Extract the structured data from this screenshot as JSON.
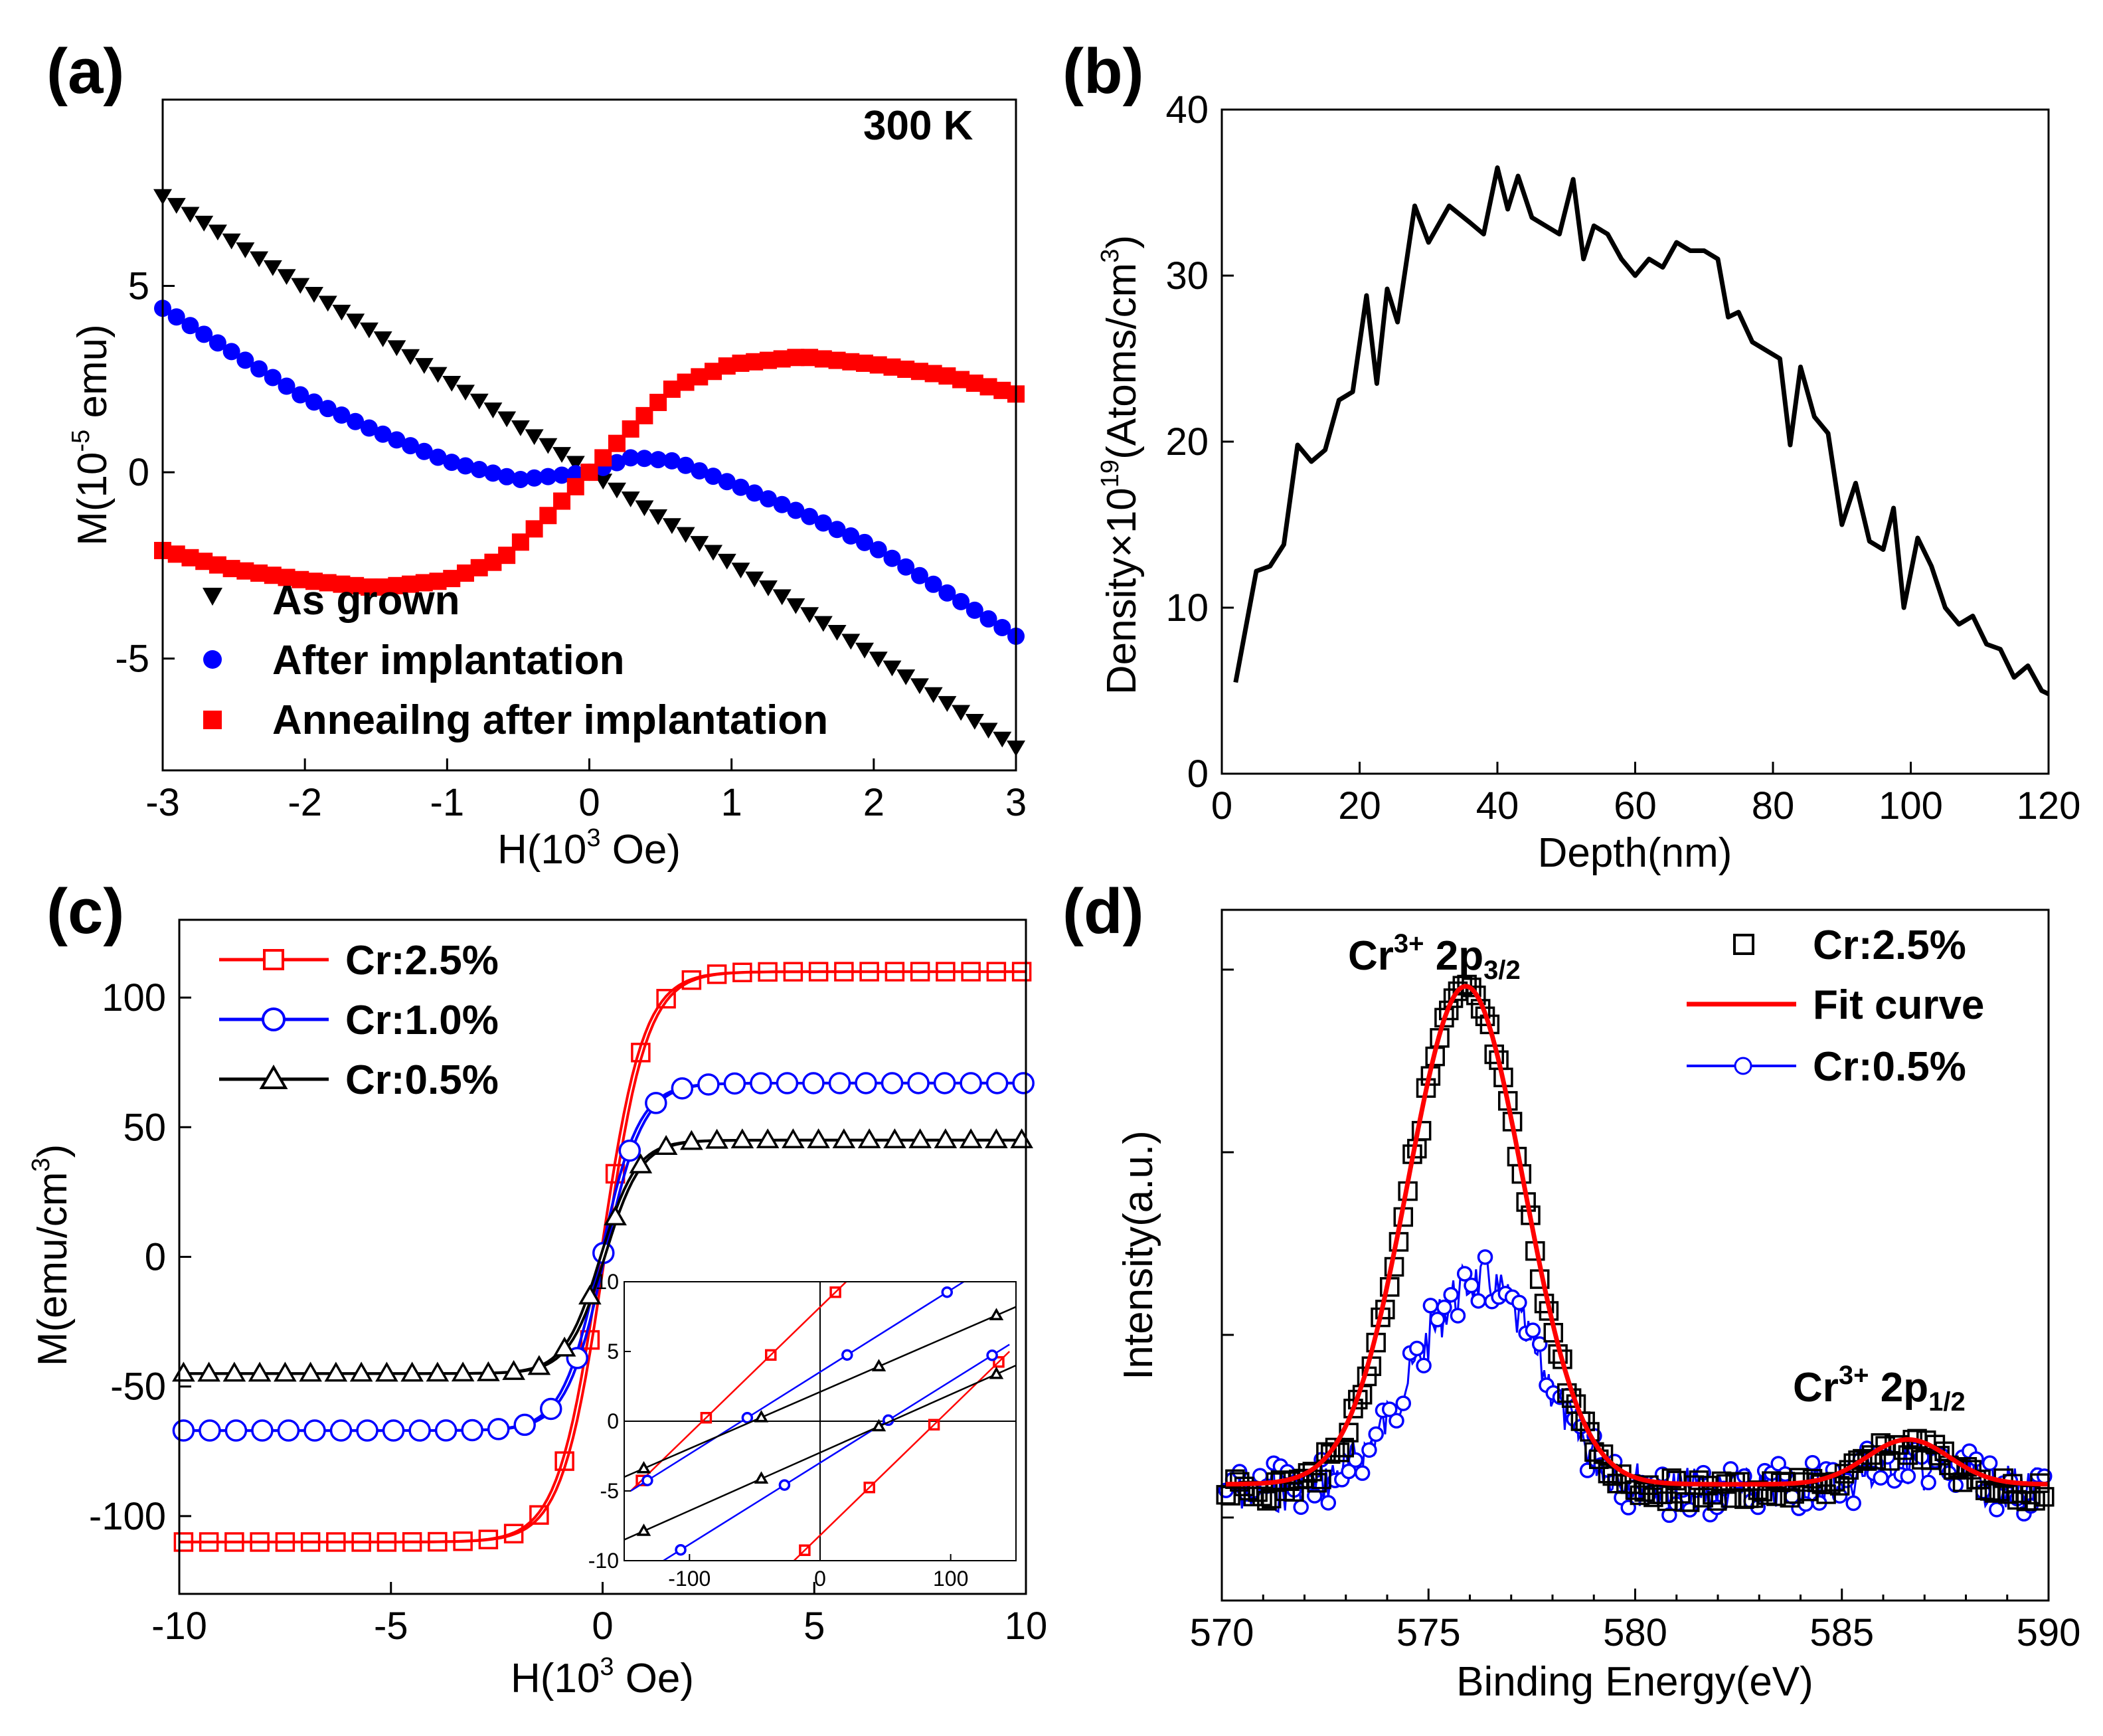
{
  "colors": {
    "black": "#000000",
    "blue": "#0000ff",
    "red": "#ff0000"
  },
  "chart_data": [
    {
      "panel_label": "(a)",
      "type": "scatter",
      "annotation": "300 K",
      "xlabel_main": "H(10",
      "xlabel_sup": "3",
      "xlabel_tail": " Oe)",
      "ylabel_main": "M(10",
      "ylabel_sup": "-5",
      "ylabel_tail": " emu)",
      "xlim": [
        -3,
        3
      ],
      "ylim": [
        -8,
        10
      ],
      "xticks": [
        -3,
        -2,
        -1,
        0,
        1,
        2,
        3
      ],
      "yticks": [
        -5,
        0,
        5
      ],
      "legend": [
        "As grown",
        "After implantation",
        "Anneailng after implantation"
      ],
      "series": [
        {
          "name": "As grown",
          "marker": "triangle-down",
          "color": "#000000",
          "x": [
            -3.0,
            0.0,
            3.0
          ],
          "y": [
            7.4,
            0.0,
            -7.4
          ]
        },
        {
          "name": "After implantation",
          "marker": "circle",
          "color": "#0000ff",
          "x": [
            -3.0,
            -2.5,
            -2.0,
            -1.5,
            -1.0,
            -0.5,
            0.0,
            0.3,
            0.6,
            1.0,
            1.5,
            2.0,
            2.5,
            3.0
          ],
          "y": [
            4.4,
            3.2,
            2.0,
            1.1,
            0.3,
            -0.2,
            0.0,
            0.4,
            0.3,
            -0.3,
            -1.1,
            -2.0,
            -3.2,
            -4.4
          ]
        },
        {
          "name": "Anneailng after implantation",
          "marker": "square",
          "color": "#ff0000",
          "x": [
            -3.0,
            -2.5,
            -2.0,
            -1.5,
            -1.0,
            -0.6,
            -0.3,
            0.0,
            0.3,
            0.6,
            1.0,
            1.5,
            2.0,
            2.5,
            3.0
          ],
          "y": [
            -2.1,
            -2.6,
            -2.9,
            -3.1,
            -2.9,
            -2.3,
            -1.2,
            0.0,
            1.2,
            2.3,
            2.9,
            3.1,
            2.9,
            2.6,
            2.1
          ]
        }
      ]
    },
    {
      "panel_label": "(b)",
      "type": "line",
      "xlabel": "Depth(nm)",
      "ylabel_main": "Density×10",
      "ylabel_sup": "19",
      "ylabel_mid": "(Atoms/cm",
      "ylabel_sup2": "3",
      "ylabel_tail": ")",
      "xlim": [
        0,
        120
      ],
      "ylim": [
        0,
        40
      ],
      "xticks": [
        0,
        20,
        40,
        60,
        80,
        100,
        120
      ],
      "yticks": [
        0,
        10,
        20,
        30,
        40
      ],
      "series": [
        {
          "name": "Density",
          "color": "#000000",
          "x": [
            2,
            5,
            7,
            9,
            11,
            13,
            15,
            17,
            19,
            21,
            22.5,
            24,
            25.5,
            28,
            30,
            33,
            36,
            38,
            40,
            41.5,
            43,
            45,
            47,
            49,
            51,
            52.5,
            54,
            56,
            58,
            60,
            62,
            64,
            66,
            68,
            70,
            72,
            73.5,
            75,
            77,
            79,
            81,
            82.5,
            84,
            86,
            88,
            90,
            92,
            94,
            96,
            97.5,
            99,
            101,
            103,
            105,
            107,
            109,
            111,
            113,
            115,
            117,
            119,
            120
          ],
          "y": [
            5.5,
            12.2,
            12.5,
            13.8,
            19.8,
            18.8,
            19.5,
            22.5,
            23.0,
            28.8,
            23.5,
            29.2,
            27.2,
            34.2,
            32.0,
            34.2,
            33.2,
            32.5,
            36.5,
            34.0,
            36.0,
            33.5,
            33.0,
            32.5,
            35.8,
            31.0,
            33.0,
            32.5,
            31.0,
            30.0,
            31.0,
            30.5,
            32.0,
            31.5,
            31.5,
            31.0,
            27.5,
            27.8,
            26.0,
            25.5,
            25.0,
            19.8,
            24.5,
            21.5,
            20.5,
            15.0,
            17.5,
            14.0,
            13.5,
            16.0,
            10.0,
            14.2,
            12.5,
            10.0,
            9.0,
            9.5,
            7.8,
            7.5,
            5.8,
            6.5,
            5.0,
            4.8
          ]
        }
      ]
    },
    {
      "panel_label": "(c)",
      "type": "line",
      "xlabel_main": "H(10",
      "xlabel_sup": "3",
      "xlabel_tail": " Oe)",
      "ylabel_main": "M(emu/cm",
      "ylabel_sup": "3",
      "ylabel_tail": ")",
      "xlim": [
        -10,
        10
      ],
      "ylim": [
        -130,
        130
      ],
      "xticks": [
        -10,
        -5,
        0,
        5,
        10
      ],
      "yticks": [
        -100,
        -50,
        0,
        50,
        100
      ],
      "legend": [
        "Cr:2.5%",
        "Cr:1.0%",
        "Cr:0.5%"
      ],
      "series": [
        {
          "name": "Cr:2.5%",
          "marker": "square-open",
          "color": "#ff0000",
          "Ms": 110,
          "width": 1.0,
          "Hc": 0.05
        },
        {
          "name": "Cr:1.0%",
          "marker": "circle-open",
          "color": "#0000ff",
          "Ms": 67,
          "width": 0.9,
          "Hc": 0.05
        },
        {
          "name": "Cr:0.5%",
          "marker": "triangle-open",
          "color": "#000000",
          "Ms": 45,
          "width": 0.85,
          "Hc": 0.05
        }
      ],
      "inset": {
        "xlim": [
          -150,
          150
        ],
        "ylim": [
          -10,
          10
        ],
        "xticks": [
          -100,
          0,
          100
        ],
        "yticks": [
          -10,
          -5,
          0,
          5,
          10
        ],
        "lines": [
          {
            "name": "Cr:2.5% up",
            "color": "#ff0000",
            "x": [
              -145,
              20
            ],
            "y": [
              -5.0,
              10.0
            ]
          },
          {
            "name": "Cr:2.5% down",
            "color": "#ff0000",
            "x": [
              -20,
              145
            ],
            "y": [
              -10.0,
              5.0
            ]
          },
          {
            "name": "Cr:1.0% up",
            "color": "#0000ff",
            "x": [
              -145,
              110
            ],
            "y": [
              -5.0,
              10.0
            ]
          },
          {
            "name": "Cr:1.0% down",
            "color": "#0000ff",
            "x": [
              -120,
              145
            ],
            "y": [
              -10.0,
              5.5
            ]
          },
          {
            "name": "Cr:0.5% up",
            "color": "#000000",
            "x": [
              -150,
              150
            ],
            "y": [
              -4.0,
              8.2
            ]
          },
          {
            "name": "Cr:0.5% down",
            "color": "#000000",
            "x": [
              -150,
              150
            ],
            "y": [
              -8.5,
              4.0
            ]
          }
        ]
      }
    },
    {
      "panel_label": "(d)",
      "type": "line",
      "xlabel": "Binding Energy(eV)",
      "ylabel": "Intensity(a.u.)",
      "xlim": [
        570,
        590
      ],
      "xticks": [
        570,
        575,
        580,
        585,
        590
      ],
      "legend": [
        "Cr:2.5%",
        "Fit curve",
        "Cr:0.5%"
      ],
      "peak_main_label": "Cr",
      "peak_main_sup": "3+",
      "peak_main_orbital": " 2p",
      "peak_main_sub": "3/2",
      "peak_minor_label": "Cr",
      "peak_minor_sup": "3+",
      "peak_minor_orbital": " 2p",
      "peak_minor_sub": "1/2",
      "series": [
        {
          "name": "Cr:2.5%",
          "marker": "square-open",
          "color": "#000000",
          "peaks": [
            {
              "center": 575.9,
              "height": 1.0,
              "sigma": 1.4
            },
            {
              "center": 586.6,
              "height": 0.09,
              "sigma": 1.0
            }
          ]
        },
        {
          "name": "Fit curve",
          "color": "#ff0000",
          "peaks": [
            {
              "center": 575.9,
              "height": 1.0,
              "sigma": 1.4
            },
            {
              "center": 586.6,
              "height": 0.09,
              "sigma": 1.0
            }
          ]
        },
        {
          "name": "Cr:0.5%",
          "marker": "circle-open",
          "color": "#0000ff",
          "peaks": [
            {
              "center": 576.2,
              "height": 0.42,
              "sigma": 1.5
            },
            {
              "center": 586.5,
              "height": 0.05,
              "sigma": 1.2
            }
          ]
        }
      ]
    }
  ]
}
